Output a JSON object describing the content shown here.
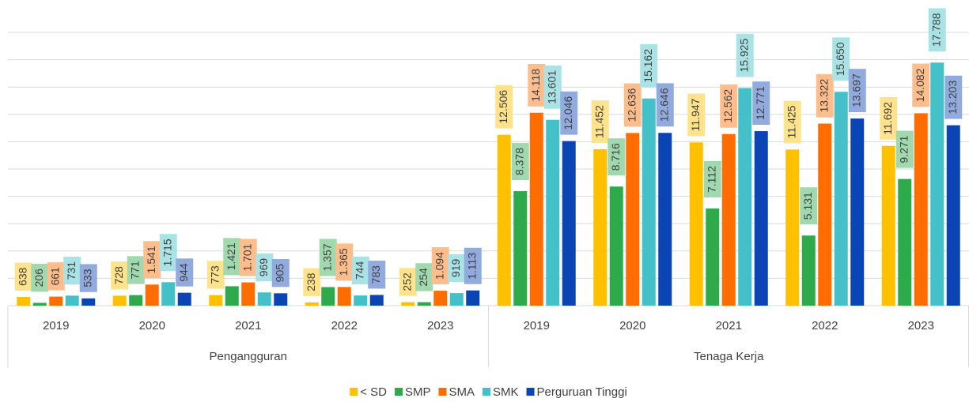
{
  "chart_data": {
    "type": "bar",
    "categories": [
      "2019",
      "2020",
      "2021",
      "2022",
      "2023",
      "2019",
      "2020",
      "2021",
      "2022",
      "2023"
    ],
    "category_groups": [
      "Pengangguran",
      "Tenaga Kerja"
    ],
    "series": [
      {
        "name": "< SD",
        "color": "#FFC000",
        "values": [
          638,
          728,
          773,
          238,
          252,
          12506,
          11452,
          11947,
          11425,
          11692
        ],
        "value_labels": [
          "638",
          "728",
          "773",
          "238",
          "252",
          "12.506",
          "11.452",
          "11.947",
          "11.425",
          "11.692"
        ]
      },
      {
        "name": "SMP",
        "color": "#2EAA4A",
        "values": [
          206,
          771,
          1421,
          1357,
          254,
          8378,
          8716,
          7112,
          5131,
          9271
        ],
        "value_labels": [
          "206",
          "771",
          "1.421",
          "1.357",
          "254",
          "8.378",
          "8.716",
          "7.112",
          "5.131",
          "9.271"
        ]
      },
      {
        "name": "SMA",
        "color": "#FF6D00",
        "values": [
          661,
          1541,
          1701,
          1365,
          1094,
          14118,
          12636,
          12562,
          13322,
          14082
        ],
        "value_labels": [
          "661",
          "1.541",
          "1.701",
          "1.365",
          "1.094",
          "14.118",
          "12.636",
          "12.562",
          "13.322",
          "14.082"
        ]
      },
      {
        "name": "SMK",
        "color": "#43C0C8",
        "values": [
          731,
          1715,
          969,
          744,
          919,
          13601,
          15162,
          15925,
          15650,
          17788
        ],
        "value_labels": [
          "731",
          "1.715",
          "969",
          "744",
          "919",
          "13.601",
          "15.162",
          "15.925",
          "15.650",
          "17.788"
        ]
      },
      {
        "name": "Perguruan Tinggi",
        "color": "#0B45B5",
        "values": [
          533,
          944,
          905,
          783,
          1113,
          12046,
          12646,
          12771,
          13697,
          13203
        ],
        "value_labels": [
          "533",
          "944",
          "905",
          "783",
          "1.113",
          "12.046",
          "12.646",
          "12.771",
          "13.697",
          "13.203"
        ]
      }
    ],
    "ylim": [
      0,
      20000
    ],
    "yticks": [
      0,
      2000,
      4000,
      6000,
      8000,
      10000,
      12000,
      14000,
      16000,
      18000,
      20000
    ],
    "grid": true,
    "legend": "bottom"
  }
}
